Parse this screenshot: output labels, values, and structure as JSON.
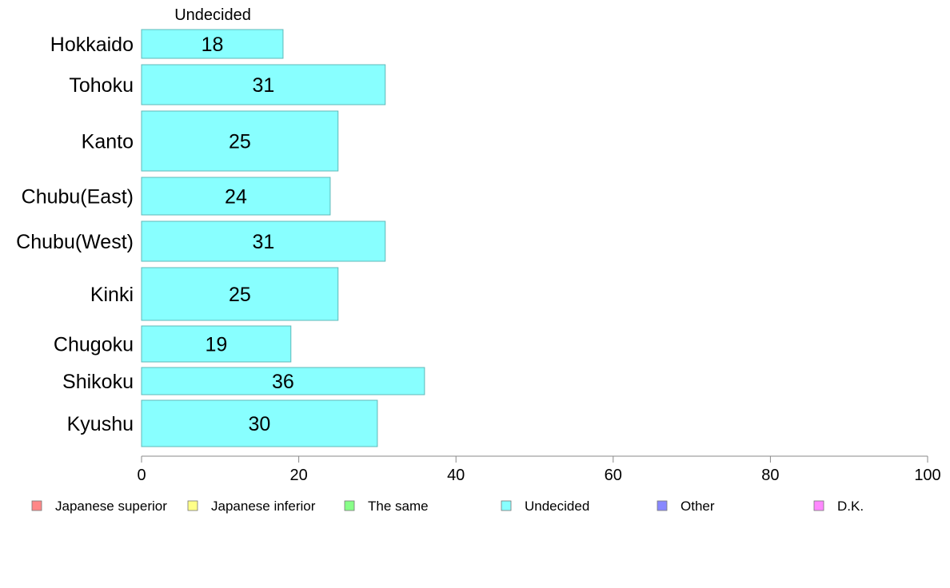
{
  "chart_data": {
    "type": "bar",
    "orientation": "horizontal",
    "series_header": "Undecided",
    "categories": [
      "Hokkaido",
      "Tohoku",
      "Kanto",
      "Chubu(East)",
      "Chubu(West)",
      "Kinki",
      "Chugoku",
      "Shikoku",
      "Kyushu"
    ],
    "values": [
      18,
      31,
      25,
      24,
      31,
      25,
      19,
      36,
      30
    ],
    "value_labels": [
      "18",
      "31",
      "25",
      "24",
      "31",
      "25",
      "19",
      "36",
      "30"
    ],
    "xlim": [
      0,
      100
    ],
    "x_ticks": [
      0,
      20,
      40,
      60,
      80,
      100
    ],
    "grid": false,
    "bar_color": "#88ffff",
    "legend_position": "bottom",
    "legend": [
      {
        "label": "Japanese superior",
        "color": "#ff8888"
      },
      {
        "label": "Japanese inferior",
        "color": "#ffff88"
      },
      {
        "label": "The same",
        "color": "#88ff88"
      },
      {
        "label": "Undecided",
        "color": "#88ffff"
      },
      {
        "label": "Other",
        "color": "#8888ff"
      },
      {
        "label": "D.K.",
        "color": "#ff88ff"
      }
    ]
  }
}
